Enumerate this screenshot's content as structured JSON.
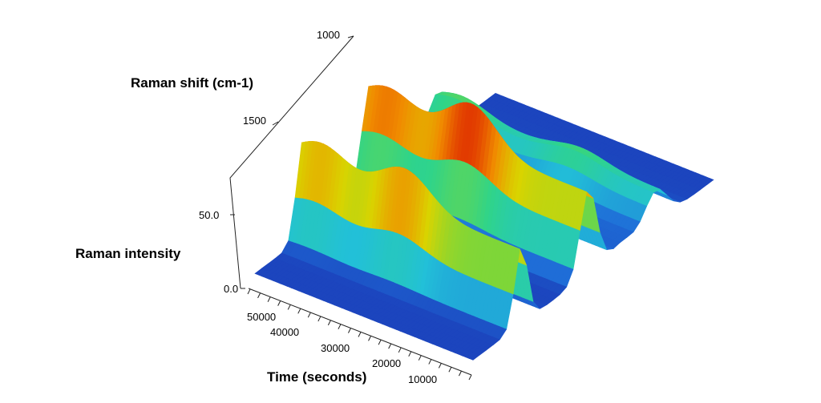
{
  "chart_data": {
    "type": "surface-3d",
    "axes": {
      "shift": {
        "label": "Raman shift (cm-1)",
        "ticks": [
          1000,
          1500
        ]
      },
      "intensity": {
        "label": "Raman intensity",
        "ticks": [
          "0.0",
          "50.0"
        ],
        "range": [
          0,
          60
        ]
      },
      "time": {
        "label": "Time (seconds)",
        "ticks": [
          10000,
          20000,
          30000,
          40000,
          50000
        ],
        "range": [
          0,
          55000
        ]
      }
    },
    "colormap": [
      "#1a2fb0",
      "#1f6fd8",
      "#22c0d8",
      "#2fd48a",
      "#7bd63a",
      "#d9d400",
      "#f08a00",
      "#e03000"
    ],
    "peaks": [
      {
        "shift": 1000,
        "time": 50000,
        "intensity": 35,
        "width": 10
      },
      {
        "shift": 1000,
        "time": 29000,
        "intensity": 45,
        "width": 9
      },
      {
        "shift": 1280,
        "time": 50000,
        "intensity": 33,
        "width": 14
      },
      {
        "shift": 1280,
        "time": 29000,
        "intensity": 55,
        "width": 11
      },
      {
        "shift": 1560,
        "time": 50000,
        "intensity": 20,
        "width": 16
      },
      {
        "shift": 1560,
        "time": 20000,
        "intensity": 14,
        "width": 16
      }
    ]
  }
}
